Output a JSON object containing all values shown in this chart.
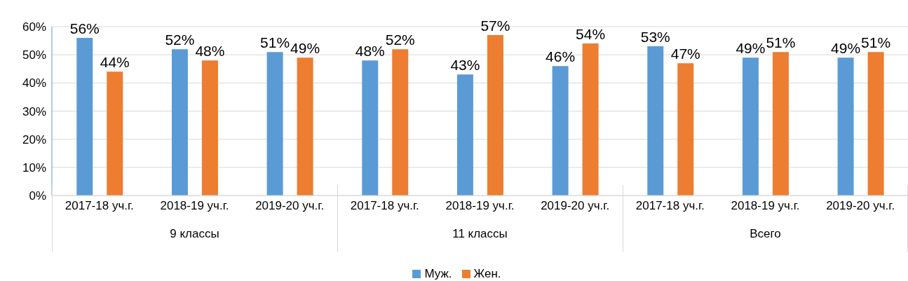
{
  "chart_data": {
    "type": "bar",
    "categories": [
      "2017-18 уч.г.",
      "2018-19 уч.г.",
      "2019-20 уч.г.",
      "2017-18 уч.г.",
      "2018-19 уч.г.",
      "2019-20 уч.г.",
      "2017-18 уч.г.",
      "2018-19 уч.г.",
      "2019-20 уч.г."
    ],
    "series": [
      {
        "name": "Муж.",
        "color": "#5b9bd5",
        "values": [
          56,
          52,
          51,
          48,
          43,
          46,
          53,
          49,
          49
        ],
        "value_labels": [
          "56%",
          "52%",
          "51%",
          "48%",
          "43%",
          "46%",
          "53%",
          "49%",
          "49%"
        ]
      },
      {
        "name": "Жен.",
        "color": "#ed7d31",
        "values": [
          44,
          48,
          49,
          52,
          57,
          54,
          47,
          51,
          51
        ],
        "value_labels": [
          "44%",
          "48%",
          "49%",
          "52%",
          "57%",
          "54%",
          "47%",
          "51%",
          "51%"
        ]
      }
    ],
    "ylim": [
      0,
      60
    ],
    "yticks": [
      {
        "value": 0,
        "label": "0%"
      },
      {
        "value": 10,
        "label": "10%"
      },
      {
        "value": 20,
        "label": "20%"
      },
      {
        "value": 30,
        "label": "30%"
      },
      {
        "value": 40,
        "label": "40%"
      },
      {
        "value": 50,
        "label": "50%"
      },
      {
        "value": 60,
        "label": "60%"
      }
    ],
    "grid": "y",
    "legend": "bottom",
    "annotations": [
      "9 классы",
      "11 классы",
      "Всего"
    ]
  }
}
